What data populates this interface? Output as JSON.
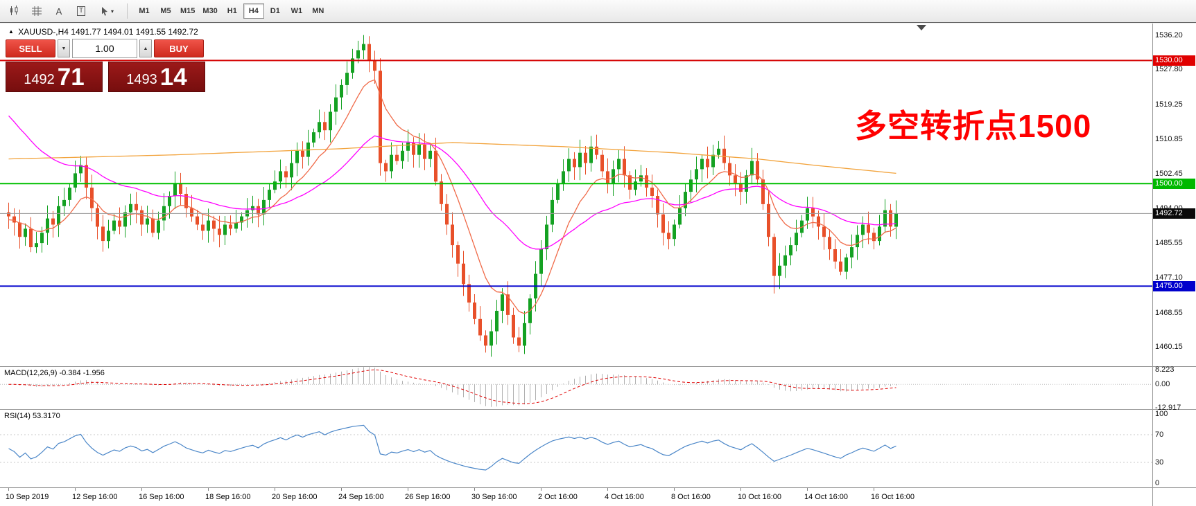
{
  "toolbar": {
    "text_tool_label": "A",
    "frame_tool_label": "T",
    "dropdown_glyph": "▾",
    "tools": [
      "candlestick-chart-icon",
      "grid-icon",
      "text-label-icon",
      "text-frame-icon",
      "shapes-dropdown-icon"
    ],
    "timeframes": [
      {
        "label": "M1",
        "active": false
      },
      {
        "label": "M5",
        "active": false
      },
      {
        "label": "M15",
        "active": false
      },
      {
        "label": "M30",
        "active": false
      },
      {
        "label": "H1",
        "active": false
      },
      {
        "label": "H4",
        "active": true
      },
      {
        "label": "D1",
        "active": false
      },
      {
        "label": "W1",
        "active": false
      },
      {
        "label": "MN",
        "active": false
      }
    ]
  },
  "symbol_info": {
    "expand_icon": "▲",
    "symbol": "XAUUSD-,H4",
    "ohlc": "1491.77 1494.01 1491.55 1492.72"
  },
  "trade_panel": {
    "sell_label": "SELL",
    "buy_label": "BUY",
    "volume": "1.00",
    "down_arrow": "▼",
    "up_arrow": "▲",
    "bid_main": "1492",
    "bid_pips": "71",
    "ask_main": "1493",
    "ask_pips": "14"
  },
  "annotation": {
    "text": "多空转折点1500",
    "color": "#ff0000"
  },
  "levels": [
    {
      "price": 1530.0,
      "color": "#d40000",
      "width": 2
    },
    {
      "price": 1500.0,
      "color": "#00c000",
      "width": 2
    },
    {
      "price": 1475.0,
      "color": "#0000cc",
      "width": 2
    }
  ],
  "current_price": {
    "value": 1492.72,
    "color": "#9a9a9a"
  },
  "price_axis": {
    "labels": [
      {
        "text": "1536.20",
        "price": 1536.2
      },
      {
        "text": "1527.80",
        "price": 1527.8
      },
      {
        "text": "1519.25",
        "price": 1519.25
      },
      {
        "text": "1510.85",
        "price": 1510.85
      },
      {
        "text": "1502.45",
        "price": 1502.45
      },
      {
        "text": "1494.00",
        "price": 1494.0
      },
      {
        "text": "1485.55",
        "price": 1485.55
      },
      {
        "text": "1477.10",
        "price": 1477.1
      },
      {
        "text": "1468.55",
        "price": 1468.55
      },
      {
        "text": "1460.15",
        "price": 1460.15
      }
    ],
    "tags": [
      {
        "text": "1530.00",
        "price": 1530.0,
        "bg": "#e00000"
      },
      {
        "text": "1500.00",
        "price": 1500.0,
        "bg": "#00b800"
      },
      {
        "text": "1492.72",
        "price": 1492.72,
        "bg": "#0a0a0a"
      },
      {
        "text": "1475.00",
        "price": 1475.0,
        "bg": "#0000cc"
      }
    ]
  },
  "indicators": {
    "macd": {
      "label": "MACD(12,26,9) -0.384 -1.956",
      "fast": 12,
      "slow": 26,
      "signal": 9,
      "axis": [
        {
          "text": "8.223",
          "value": 8.223
        },
        {
          "text": "0.00",
          "value": 0
        },
        {
          "text": "-12.917",
          "value": -12.917
        }
      ],
      "view": [
        -13.6,
        9.6
      ]
    },
    "rsi": {
      "label": "RSI(14) 53.3170",
      "period": 14,
      "levels": [
        70,
        30
      ],
      "axis": [
        {
          "text": "100",
          "value": 100
        },
        {
          "text": "70",
          "value": 70
        },
        {
          "text": "30",
          "value": 30
        },
        {
          "text": "0",
          "value": 0
        }
      ],
      "view": [
        -6,
        106
      ]
    }
  },
  "time_axis": {
    "step": 12,
    "labels": [
      "10 Sep 2019",
      "12 Sep 16:00",
      "16 Sep 16:00",
      "18 Sep 16:00",
      "20 Sep 16:00",
      "24 Sep 16:00",
      "26 Sep 16:00",
      "30 Sep 16:00",
      "2 Oct 16:00",
      "4 Oct 16:00",
      "8 Oct 16:00",
      "10 Oct 16:00",
      "14 Oct 16:00",
      "16 Oct 16:00"
    ]
  },
  "chart_data": {
    "type": "candlestick",
    "title": "XAUUSD- H4",
    "ylim": [
      1455.5,
      1539.0
    ],
    "up_color": "#14a122",
    "down_color": "#e8502a",
    "first_open": 1493.0,
    "closes": [
      1492,
      1490.5,
      1487,
      1489,
      1484.5,
      1485.5,
      1488,
      1491.5,
      1490,
      1494.5,
      1496,
      1499,
      1502.5,
      1504.5,
      1499,
      1494,
      1489.5,
      1486,
      1488.5,
      1491,
      1489.5,
      1493,
      1495,
      1493.5,
      1490,
      1491.5,
      1488,
      1491,
      1494.5,
      1497,
      1500,
      1497.5,
      1494,
      1492,
      1490,
      1488.5,
      1491,
      1489,
      1487.5,
      1490,
      1489,
      1490.5,
      1492,
      1493.5,
      1494.5,
      1492.5,
      1496,
      1498.5,
      1500.5,
      1503,
      1501.5,
      1505,
      1508,
      1506.5,
      1510,
      1512.5,
      1515,
      1513,
      1517.5,
      1521,
      1524,
      1527,
      1530.5,
      1532.5,
      1534,
      1530,
      1527.5,
      1505,
      1503,
      1507,
      1505.5,
      1508,
      1510,
      1507,
      1509.5,
      1506,
      1508,
      1500.5,
      1495,
      1490,
      1485,
      1480.5,
      1475.5,
      1471,
      1467,
      1463,
      1460.5,
      1464,
      1469,
      1473,
      1468,
      1462.5,
      1460.5,
      1466,
      1472,
      1478,
      1484,
      1490,
      1496,
      1500,
      1503,
      1506,
      1504,
      1507.5,
      1505,
      1509,
      1507,
      1503,
      1500,
      1503.5,
      1506,
      1502,
      1498.5,
      1500.5,
      1502,
      1499,
      1497,
      1492.5,
      1488,
      1486.5,
      1490,
      1494,
      1498,
      1501,
      1503.5,
      1506,
      1504,
      1507,
      1508.5,
      1505,
      1502,
      1500,
      1498,
      1502,
      1505.5,
      1501,
      1495,
      1487,
      1477.5,
      1480,
      1482.5,
      1485,
      1488,
      1491,
      1494,
      1492,
      1489.5,
      1487,
      1484,
      1481,
      1478.5,
      1482,
      1484.5,
      1487.5,
      1490,
      1488,
      1486,
      1489.5,
      1493.5,
      1489.5,
      1492.7
    ],
    "high_overrides": {
      "62": 1532.8,
      "63": 1534.8,
      "64": 1536.2
    },
    "low_overrides": {
      "86": 1458.8,
      "92": 1458.9,
      "138": 1473.2
    },
    "moving_averages": [
      {
        "name": "ma-slow",
        "color": "#f2a33c",
        "type": "keyframes",
        "points": [
          [
            0,
            1506
          ],
          [
            30,
            1507
          ],
          [
            60,
            1508.5
          ],
          [
            80,
            1510
          ],
          [
            100,
            1509
          ],
          [
            120,
            1507.5
          ],
          [
            135,
            1506
          ],
          [
            145,
            1504.5
          ],
          [
            160,
            1502.5
          ]
        ]
      },
      {
        "name": "ma-mid",
        "color": "#ff00ff",
        "type": "ema",
        "period": 34,
        "seed": 1518
      },
      {
        "name": "ma-fast",
        "color": "#f06a48",
        "type": "ema",
        "period": 10,
        "seed": 1491
      }
    ]
  }
}
